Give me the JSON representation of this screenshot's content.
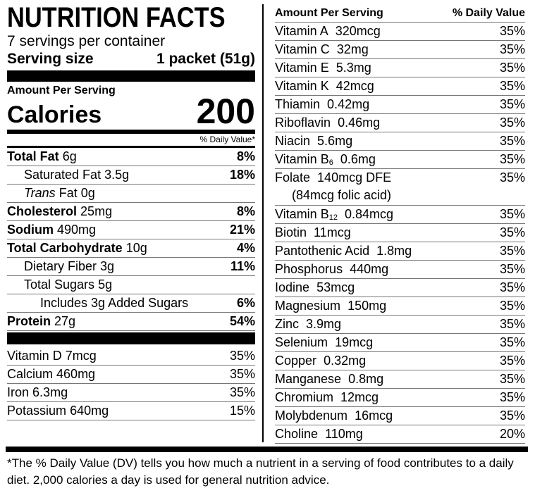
{
  "left": {
    "title": "NUTRITION FACTS",
    "servings": "7 servings per container",
    "serving_size_label": "Serving size",
    "serving_size_value": "1 packet (51g)",
    "amount_per_serving": "Amount Per Serving",
    "calories_label": "Calories",
    "calories_value": "200",
    "dv_header": "% Daily Value*",
    "nutrients": [
      {
        "name": "Total Fat",
        "amount": "6g",
        "dv": "8%"
      },
      {
        "name": "Saturated Fat",
        "amount": "3.5g",
        "dv": "18%"
      },
      {
        "name_italic": "Trans",
        "name": "Fat",
        "amount": "0g"
      },
      {
        "name": "Cholesterol",
        "amount": "25mg",
        "dv": "8%"
      },
      {
        "name": "Sodium",
        "amount": "490mg",
        "dv": "21%"
      },
      {
        "name": "Total Carbohydrate",
        "amount": "10g",
        "dv": "4%"
      },
      {
        "name": "Dietary Fiber",
        "amount": "3g",
        "dv": "11%"
      },
      {
        "name": "Total Sugars",
        "amount": "5g"
      },
      {
        "name": "Includes 3g Added Sugars",
        "dv": "6%"
      },
      {
        "name": "Protein",
        "amount": "27g",
        "dv": "54%"
      }
    ],
    "vitamins": [
      {
        "name": "Vitamin D",
        "amount": "7mcg",
        "dv": "35%"
      },
      {
        "name": "Calcium",
        "amount": "460mg",
        "dv": "35%"
      },
      {
        "name": "Iron",
        "amount": "6.3mg",
        "dv": "35%"
      },
      {
        "name": "Potassium",
        "amount": "640mg",
        "dv": "15%"
      }
    ]
  },
  "right": {
    "header_left": "Amount Per Serving",
    "header_right": "% Daily Value",
    "rows": [
      {
        "name": "Vitamin A",
        "amount": "320mcg",
        "dv": "35%"
      },
      {
        "name": "Vitamin C",
        "amount": "32mg",
        "dv": "35%"
      },
      {
        "name": "Vitamin E",
        "amount": "5.3mg",
        "dv": "35%"
      },
      {
        "name": "Vitamin K",
        "amount": "42mcg",
        "dv": "35%"
      },
      {
        "name": "Thiamin",
        "amount": "0.42mg",
        "dv": "35%"
      },
      {
        "name": "Riboflavin",
        "amount": "0.46mg",
        "dv": "35%"
      },
      {
        "name": "Niacin",
        "amount": "5.6mg",
        "dv": "35%"
      },
      {
        "name": "Vitamin B",
        "sub": "6",
        "amount": "0.6mg",
        "dv": "35%"
      },
      {
        "name": "Folate",
        "amount": "140mcg DFE",
        "note": "(84mcg folic acid)",
        "dv": "35%"
      },
      {
        "name": "Vitamin B",
        "sub": "12",
        "amount": "0.84mcg",
        "dv": "35%"
      },
      {
        "name": "Biotin",
        "amount": "11mcg",
        "dv": "35%"
      },
      {
        "name": "Pantothenic Acid",
        "amount": "1.8mg",
        "dv": "35%"
      },
      {
        "name": "Phosphorus",
        "amount": "440mg",
        "dv": "35%"
      },
      {
        "name": "Iodine",
        "amount": "53mcg",
        "dv": "35%"
      },
      {
        "name": "Magnesium",
        "amount": "150mg",
        "dv": "35%"
      },
      {
        "name": "Zinc",
        "amount": "3.9mg",
        "dv": "35%"
      },
      {
        "name": "Selenium",
        "amount": "19mcg",
        "dv": "35%"
      },
      {
        "name": "Copper",
        "amount": "0.32mg",
        "dv": "35%"
      },
      {
        "name": "Manganese",
        "amount": "0.8mg",
        "dv": "35%"
      },
      {
        "name": "Chromium",
        "amount": "12mcg",
        "dv": "35%"
      },
      {
        "name": "Molybdenum",
        "amount": "16mcg",
        "dv": "35%"
      },
      {
        "name": "Choline",
        "amount": "110mg",
        "dv": "20%"
      }
    ]
  },
  "footnote": "*The % Daily Value (DV) tells you how much a nutrient in a serving of food contributes to a daily diet. 2,000 calories a day is used for general nutrition advice."
}
